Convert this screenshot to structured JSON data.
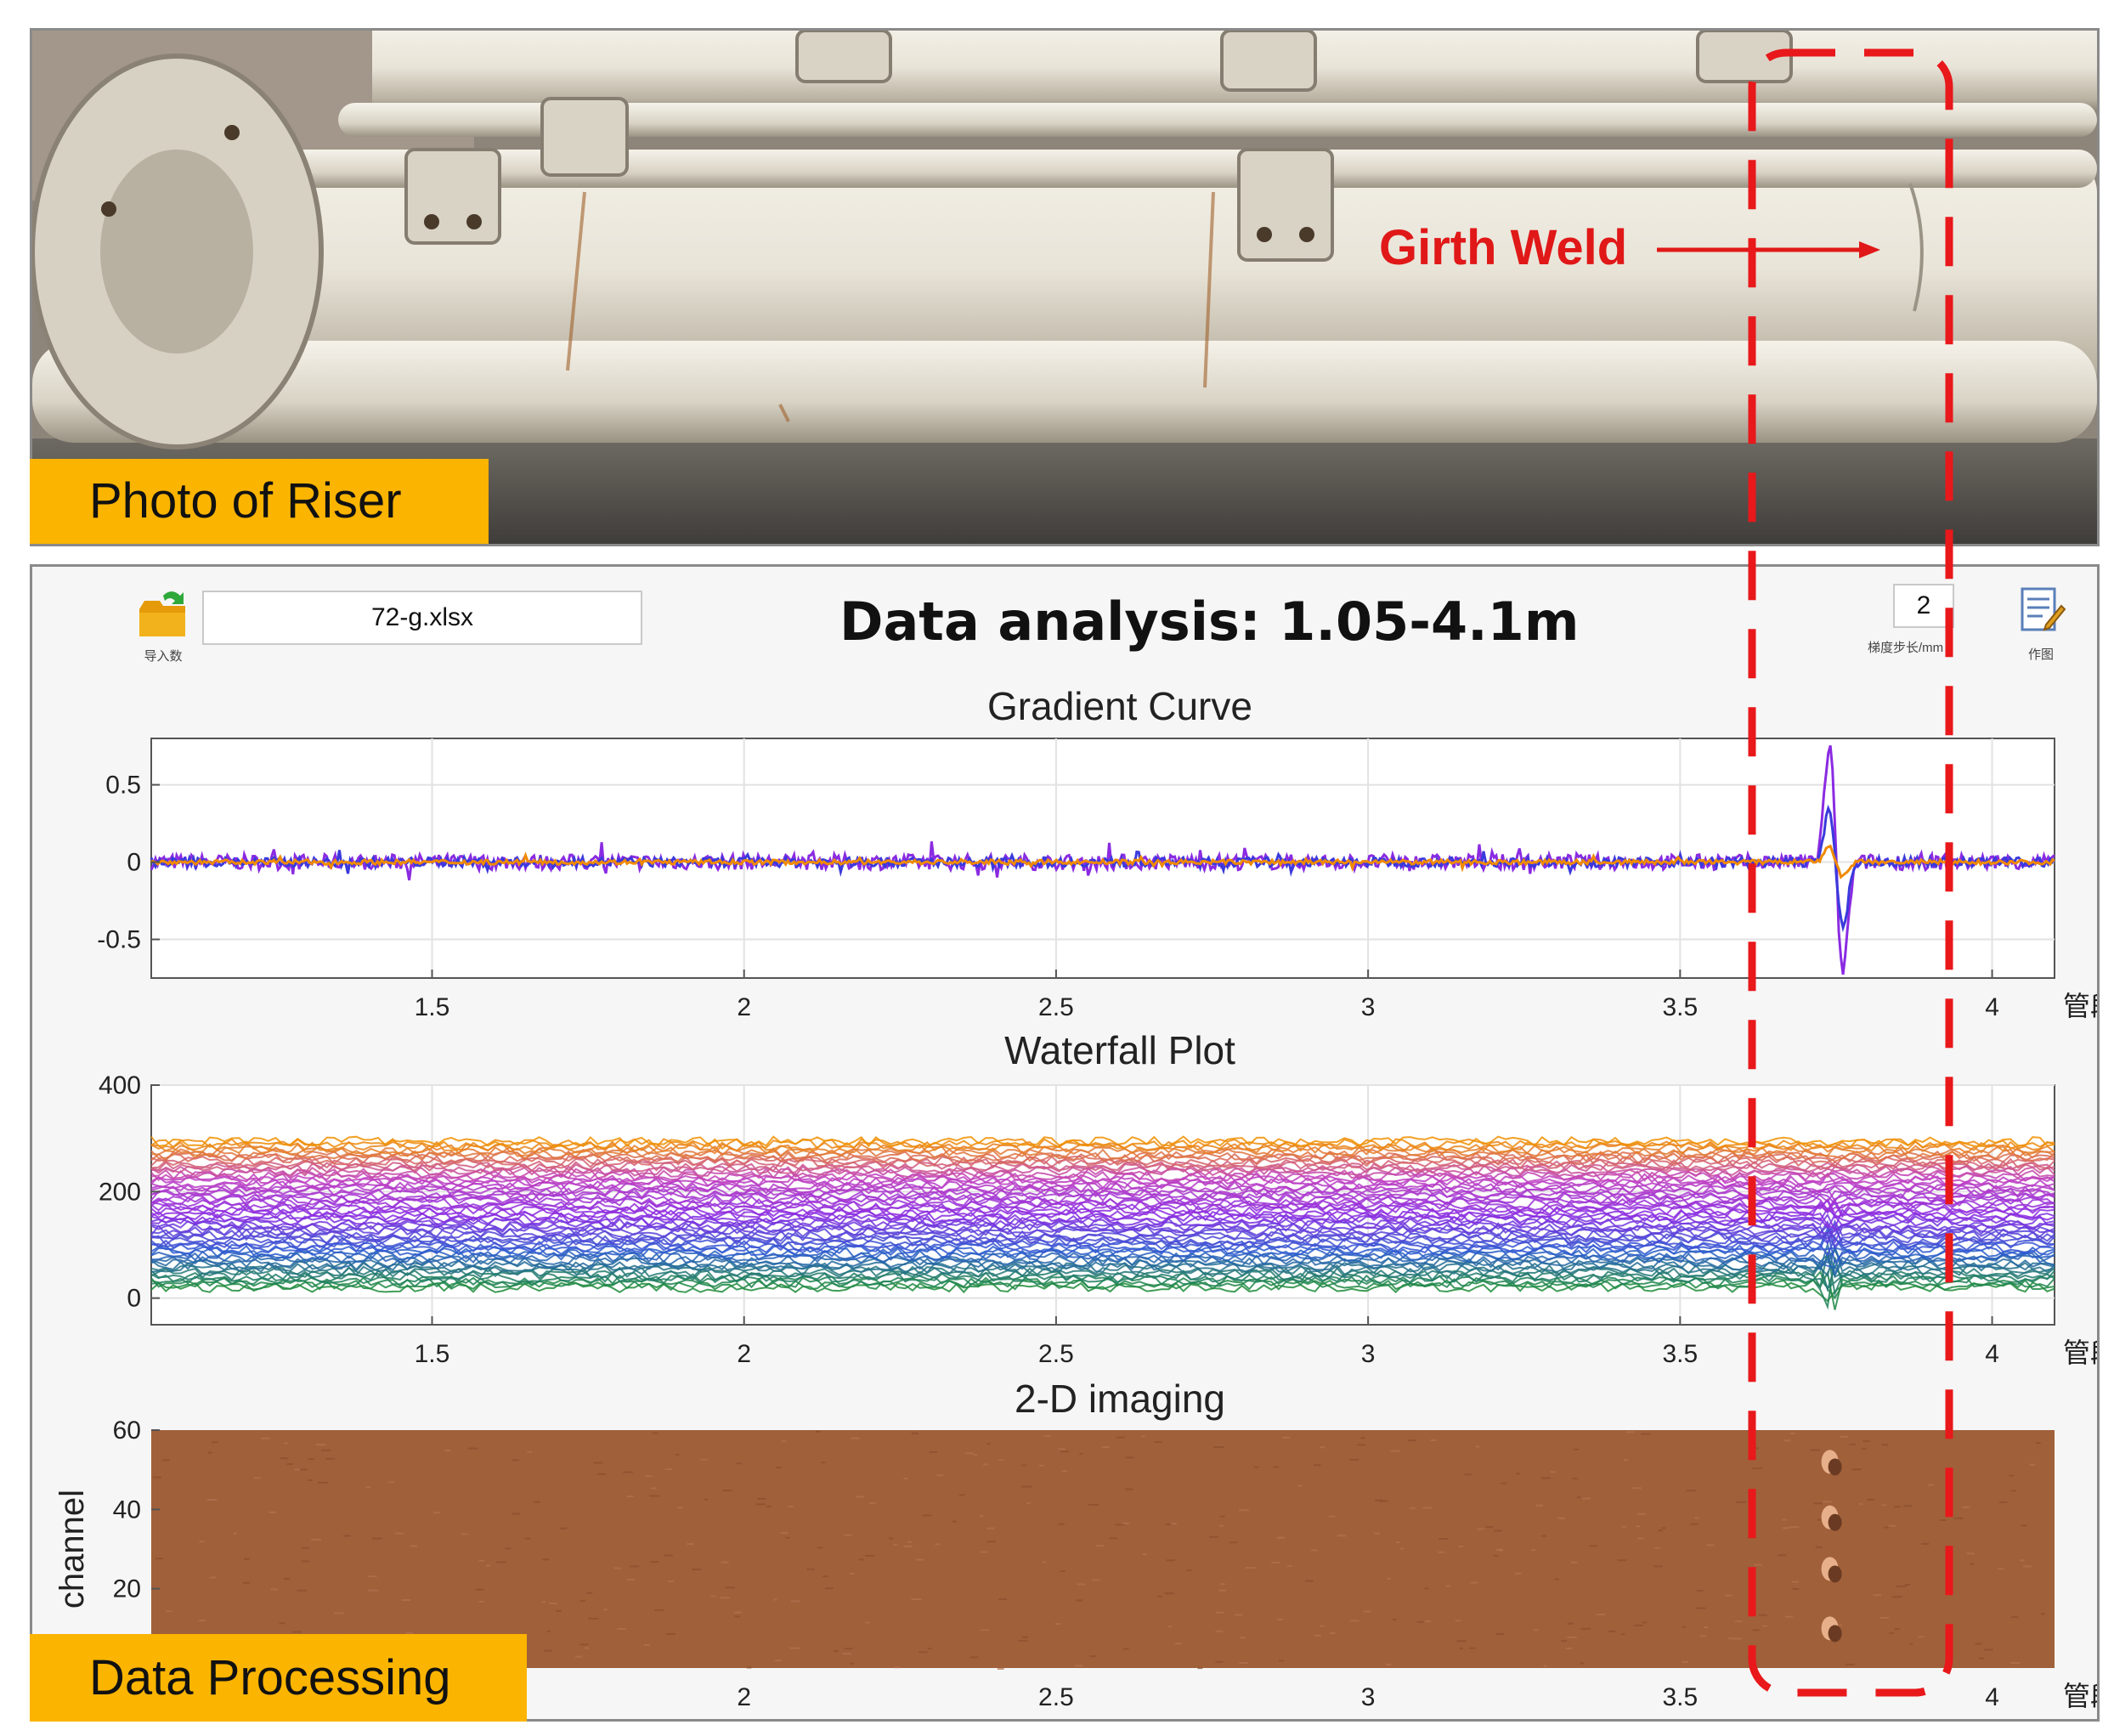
{
  "photo": {
    "label": "Photo of Riser",
    "annotation": "Girth Weld"
  },
  "toolbar": {
    "import_label": "导入数",
    "file_name": "72-g.xlsx",
    "title": "Data analysis: 1.05-4.1m",
    "step_value": "2",
    "step_label": "梯度步长/mm",
    "plot_label": "作图"
  },
  "panel": {
    "label": "Data Processing"
  },
  "colors": {
    "highlight": "#e8181b",
    "tag": "#fbb400",
    "heatmap": "#a0603a"
  },
  "chart_data": [
    {
      "type": "line",
      "title": "Gradient Curve",
      "xlabel": "管段/m",
      "ylabel": "",
      "xlim": [
        1.05,
        4.1
      ],
      "ylim": [
        -0.75,
        0.8
      ],
      "xticks": [
        "1.5",
        "2",
        "2.5",
        "3",
        "3.5",
        "4"
      ],
      "yticks": [
        "0.5",
        "0",
        "-0.5"
      ],
      "grid": true,
      "series": [
        {
          "color": "#8a2be2",
          "amplitude": 0.05,
          "anomaly_x": 3.74,
          "anomaly_peak": 0.78,
          "anomaly_trough": -0.75
        },
        {
          "color": "#3a3adc",
          "amplitude": 0.03,
          "anomaly_x": 3.74,
          "anomaly_peak": 0.35,
          "anomaly_trough": -0.45
        },
        {
          "color": "#f08a00",
          "amplitude": 0.015,
          "anomaly_x": 3.74,
          "anomaly_peak": 0.1,
          "anomaly_trough": -0.1
        }
      ]
    },
    {
      "type": "line",
      "title": "Waterfall Plot",
      "xlabel": "管段/m",
      "ylabel": "",
      "xlim": [
        1.05,
        4.1
      ],
      "ylim": [
        -50,
        400
      ],
      "xticks": [
        "1.5",
        "2",
        "2.5",
        "3",
        "3.5",
        "4"
      ],
      "yticks": [
        "400",
        "200",
        "0"
      ],
      "grid": true,
      "channel_count": 60,
      "channel_offset_step": 5,
      "anomaly_x": 3.74,
      "color_ramp": [
        "#1e8c3a",
        "#2a5ad0",
        "#8a2be2",
        "#c040c0",
        "#f09000"
      ]
    },
    {
      "type": "heatmap",
      "title": "2-D imaging",
      "xlabel": "管段/m",
      "ylabel": "channel",
      "xlim": [
        1.05,
        4.1
      ],
      "ylim": [
        0,
        60
      ],
      "xticks": [
        "2",
        "2.5",
        "3",
        "3.5",
        "4"
      ],
      "yticks": [
        "60",
        "40",
        "20"
      ],
      "anomaly_x": 3.74,
      "base_color": "#a0603a"
    }
  ]
}
